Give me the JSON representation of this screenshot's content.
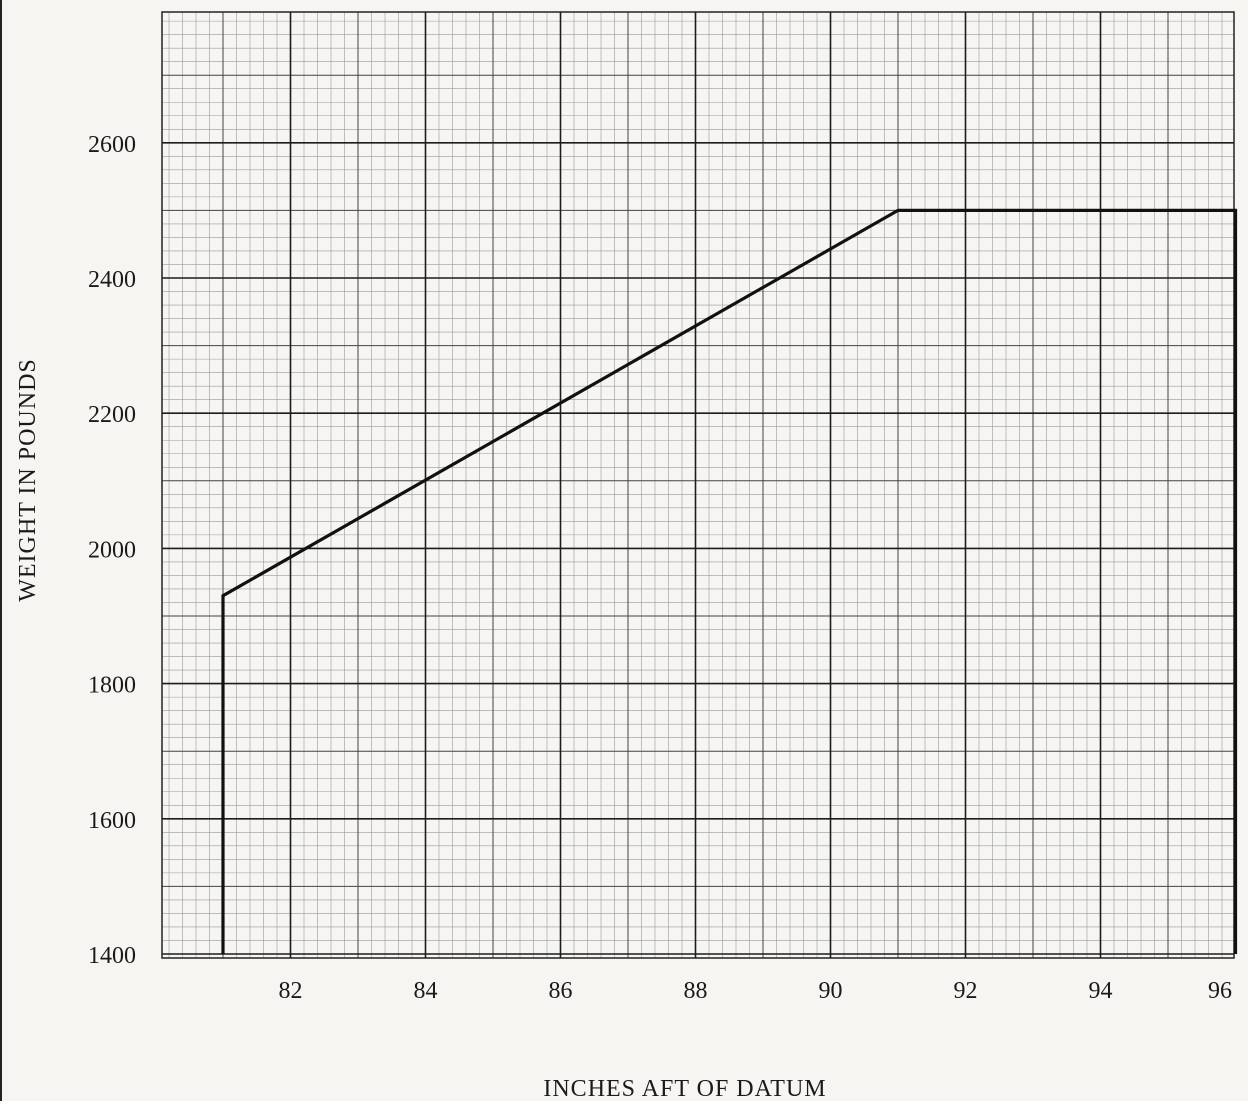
{
  "chart_data": {
    "type": "line",
    "xlabel": "INCHES AFT OF DATUM",
    "ylabel": "WEIGHT IN POUNDS",
    "xlim": [
      80,
      96
    ],
    "ylim": [
      1400,
      2800
    ],
    "x_ticks": [
      "82",
      "84",
      "86",
      "88",
      "90",
      "92",
      "94",
      "96"
    ],
    "y_ticks": [
      "1400",
      "1600",
      "1800",
      "2000",
      "2200",
      "2400",
      "2600"
    ],
    "grid": true,
    "series": [
      {
        "points": [
          {
            "x": 81.0,
            "y": 1400
          },
          {
            "x": 81.0,
            "y": 1930
          },
          {
            "x": 91.0,
            "y": 2500
          },
          {
            "x": 96.0,
            "y": 2500
          },
          {
            "x": 96.0,
            "y": 1400
          }
        ]
      }
    ]
  }
}
